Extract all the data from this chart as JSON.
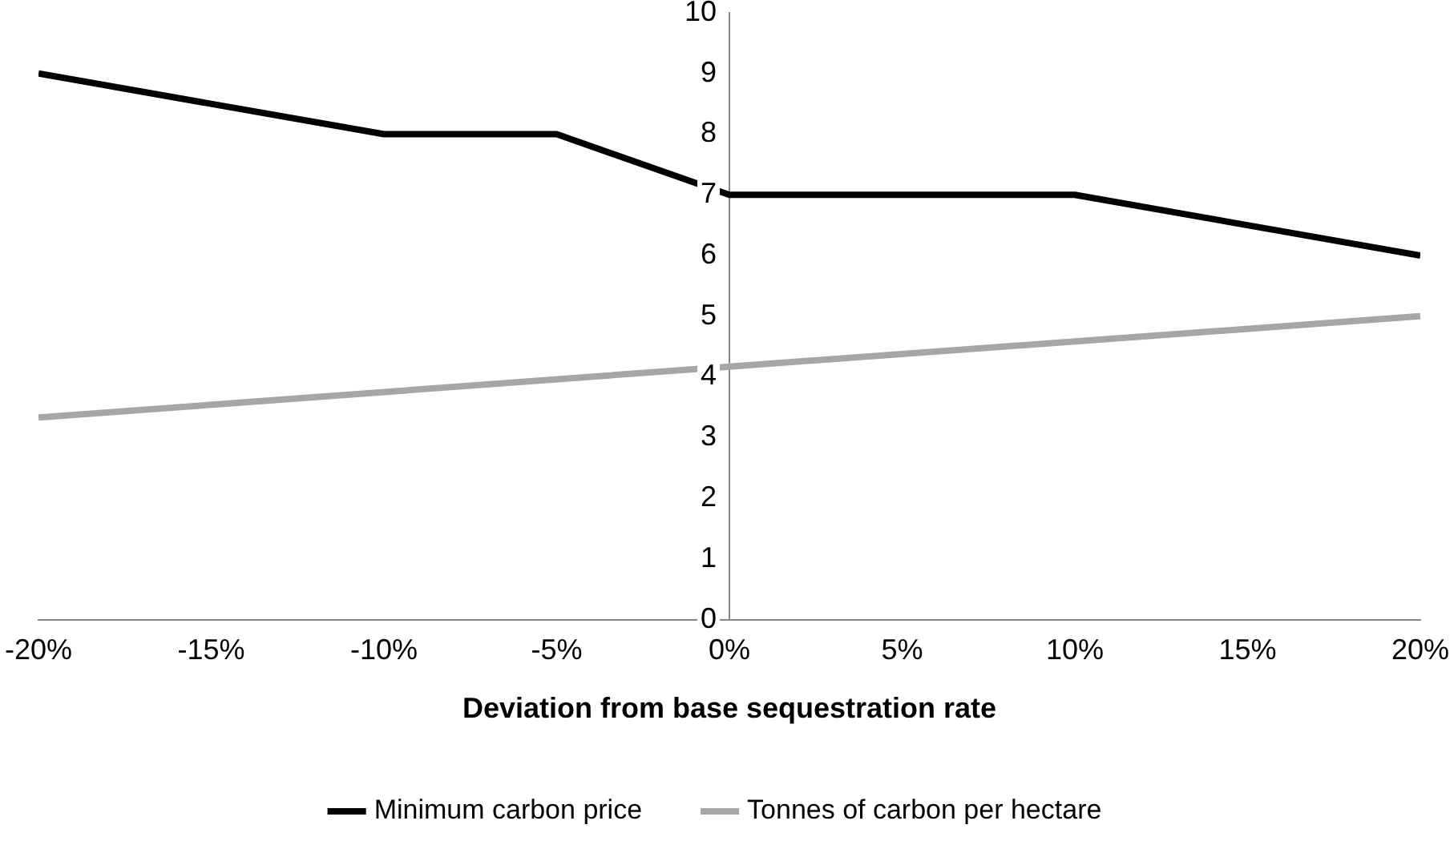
{
  "chart_data": {
    "type": "line",
    "xlabel": "Deviation from base sequestration rate",
    "xlim": [
      -20,
      20
    ],
    "xticks": [
      {
        "value": -20,
        "label": "-20%"
      },
      {
        "value": -15,
        "label": "-15%"
      },
      {
        "value": -10,
        "label": "-10%"
      },
      {
        "value": -5,
        "label": "-5%"
      },
      {
        "value": 0,
        "label": "0%"
      },
      {
        "value": 5,
        "label": "5%"
      },
      {
        "value": 10,
        "label": "10%"
      },
      {
        "value": 15,
        "label": "15%"
      },
      {
        "value": 20,
        "label": "20%"
      }
    ],
    "ylim": [
      0,
      10
    ],
    "yticks": [
      0,
      1,
      2,
      3,
      4,
      5,
      6,
      7,
      8,
      9,
      10
    ],
    "grid": false,
    "legend": "bottom",
    "marker": "none",
    "series": [
      {
        "name": "Minimum carbon price",
        "color": "#000000",
        "x": [
          -20,
          -10,
          -5,
          0,
          10,
          20
        ],
        "values": [
          9,
          8,
          8,
          7,
          7,
          6
        ]
      },
      {
        "name": "Tonnes of carbon per hectare",
        "color": "#a6a6a6",
        "x": [
          -20,
          0,
          20
        ],
        "values": [
          3.33,
          4.17,
          5
        ]
      }
    ]
  }
}
